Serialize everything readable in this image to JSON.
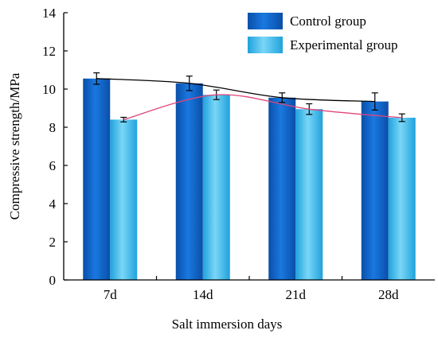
{
  "chart_data": {
    "type": "bar",
    "xlabel": "Salt immersion days",
    "ylabel": "Compressive strength/MPa",
    "categories": [
      "7d",
      "14d",
      "21d",
      "28d"
    ],
    "ylim": [
      0,
      14
    ],
    "yticks": [
      0,
      2,
      4,
      6,
      8,
      10,
      12,
      14
    ],
    "grid": false,
    "legend_position": "top-right",
    "series": [
      {
        "name": "Control group",
        "values": [
          10.55,
          10.3,
          9.55,
          9.35
        ],
        "errors": [
          0.3,
          0.38,
          0.25,
          0.45
        ],
        "color": "#0b63c9",
        "trend_color": "#000000"
      },
      {
        "name": "Experimental group",
        "values": [
          8.4,
          9.7,
          8.95,
          8.5
        ],
        "errors": [
          0.12,
          0.25,
          0.28,
          0.2
        ],
        "color": "#2fb6ea",
        "trend_color": "#e0467a"
      }
    ]
  }
}
